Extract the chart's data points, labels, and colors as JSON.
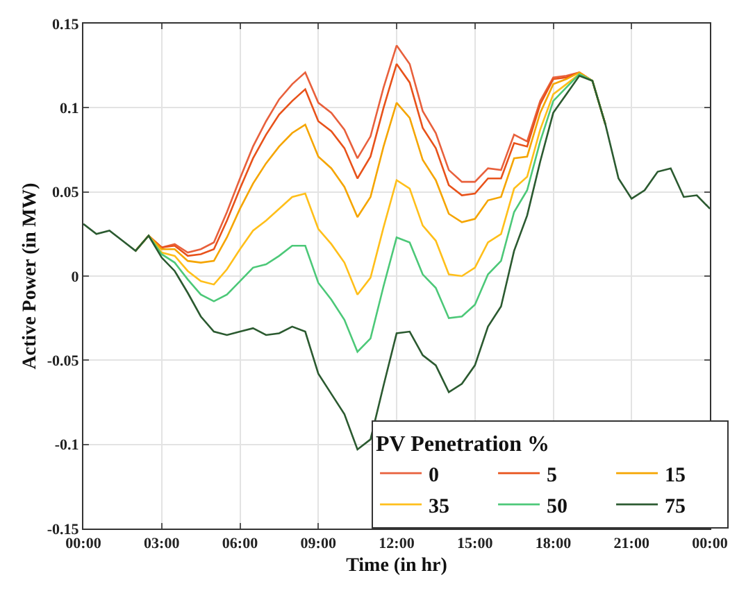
{
  "chart_data": {
    "type": "line",
    "xlabel": "Time (in hr)",
    "ylabel": "Active Power (in MW)",
    "legend_title": "PV Penetration %",
    "legend": "bottom right",
    "grid": true,
    "line_style": "solid",
    "marker": "none",
    "x": [
      0,
      0.5,
      1,
      1.5,
      2,
      2.5,
      3,
      3.5,
      4,
      4.5,
      5,
      5.5,
      6,
      6.5,
      7,
      7.5,
      8,
      8.5,
      9,
      9.5,
      10,
      10.5,
      11,
      11.5,
      12,
      12.5,
      13,
      13.5,
      14,
      14.5,
      15,
      15.5,
      16,
      16.5,
      17,
      17.5,
      18,
      18.5,
      19,
      19.5,
      20,
      20.5,
      21,
      21.5,
      22,
      22.5,
      23,
      23.5,
      24
    ],
    "xlim": [
      0,
      24
    ],
    "xticks": [
      {
        "value": 0,
        "label": "00:00"
      },
      {
        "value": 3,
        "label": "03:00"
      },
      {
        "value": 6,
        "label": "06:00"
      },
      {
        "value": 9,
        "label": "09:00"
      },
      {
        "value": 12,
        "label": "12:00"
      },
      {
        "value": 15,
        "label": "15:00"
      },
      {
        "value": 18,
        "label": "18:00"
      },
      {
        "value": 21,
        "label": "21:00"
      },
      {
        "value": 24,
        "label": "00:00"
      }
    ],
    "ylim": [
      -0.15,
      0.15
    ],
    "yticks": [
      -0.15,
      -0.1,
      -0.05,
      0,
      0.05,
      0.1,
      0.15
    ],
    "series": [
      {
        "name": "0",
        "color": "#e8603c",
        "values": [
          null,
          null,
          null,
          null,
          0.015,
          0.024,
          0.017,
          0.019,
          0.014,
          0.016,
          0.02,
          0.038,
          0.058,
          0.077,
          0.092,
          0.105,
          0.114,
          0.121,
          0.103,
          0.097,
          0.087,
          0.07,
          0.083,
          0.112,
          0.137,
          0.126,
          0.098,
          0.085,
          0.063,
          0.056,
          0.056,
          0.064,
          0.063,
          0.084,
          0.08,
          0.104,
          0.118,
          0.119,
          0.121,
          0.116,
          0.09,
          null,
          null,
          null,
          null,
          null,
          null,
          null,
          null
        ]
      },
      {
        "name": "5",
        "color": "#e8521a",
        "values": [
          null,
          null,
          null,
          null,
          0.015,
          0.024,
          0.017,
          0.018,
          0.012,
          0.013,
          0.016,
          0.033,
          0.052,
          0.07,
          0.084,
          0.096,
          0.104,
          0.111,
          0.092,
          0.086,
          0.076,
          0.058,
          0.071,
          0.1,
          0.126,
          0.115,
          0.088,
          0.076,
          0.054,
          0.048,
          0.049,
          0.058,
          0.058,
          0.079,
          0.077,
          0.102,
          0.117,
          0.118,
          0.121,
          0.116,
          0.09,
          null,
          null,
          null,
          null,
          null,
          null,
          null,
          null
        ]
      },
      {
        "name": "15",
        "color": "#f5a500",
        "values": [
          null,
          null,
          null,
          null,
          0.015,
          0.024,
          0.016,
          0.016,
          0.009,
          0.008,
          0.009,
          0.023,
          0.04,
          0.055,
          0.067,
          0.077,
          0.085,
          0.09,
          0.071,
          0.064,
          0.053,
          0.035,
          0.047,
          0.077,
          0.103,
          0.094,
          0.069,
          0.057,
          0.037,
          0.032,
          0.034,
          0.045,
          0.047,
          0.07,
          0.071,
          0.097,
          0.114,
          0.117,
          0.121,
          0.116,
          0.09,
          null,
          null,
          null,
          null,
          null,
          null,
          null,
          null
        ]
      },
      {
        "name": "35",
        "color": "#ffbf1a",
        "values": [
          null,
          null,
          null,
          null,
          0.015,
          0.024,
          0.014,
          0.012,
          0.003,
          -0.003,
          -0.005,
          0.004,
          0.016,
          0.027,
          0.033,
          0.04,
          0.047,
          0.049,
          0.028,
          0.019,
          0.008,
          -0.011,
          -0.001,
          0.029,
          0.057,
          0.052,
          0.03,
          0.021,
          0.001,
          0.0,
          0.005,
          0.02,
          0.025,
          0.052,
          0.059,
          0.087,
          0.108,
          0.114,
          0.12,
          0.116,
          0.09,
          null,
          null,
          null,
          null,
          null,
          null,
          null,
          null
        ]
      },
      {
        "name": "50",
        "color": "#4cc878",
        "values": [
          null,
          null,
          null,
          null,
          0.015,
          0.024,
          0.013,
          0.008,
          -0.002,
          -0.011,
          -0.015,
          -0.011,
          -0.003,
          0.005,
          0.007,
          0.012,
          0.018,
          0.018,
          -0.004,
          -0.014,
          -0.026,
          -0.045,
          -0.037,
          -0.006,
          0.023,
          0.02,
          0.001,
          -0.007,
          -0.025,
          -0.024,
          -0.017,
          0.001,
          0.009,
          0.038,
          0.051,
          0.08,
          0.104,
          0.112,
          0.12,
          0.116,
          0.09,
          null,
          null,
          null,
          null,
          null,
          null,
          null,
          null
        ]
      },
      {
        "name": "75",
        "color": "#2b5a30",
        "values": [
          0.031,
          0.025,
          0.027,
          0.021,
          0.015,
          0.024,
          0.011,
          0.003,
          -0.01,
          -0.024,
          -0.033,
          -0.035,
          -0.033,
          -0.031,
          -0.035,
          -0.034,
          -0.03,
          -0.033,
          -0.058,
          -0.07,
          -0.082,
          -0.103,
          -0.097,
          -0.065,
          -0.034,
          -0.033,
          -0.047,
          -0.053,
          -0.069,
          -0.064,
          -0.053,
          -0.03,
          -0.018,
          0.015,
          0.036,
          0.068,
          0.097,
          0.108,
          0.119,
          0.116,
          0.09,
          0.058,
          0.046,
          0.051,
          0.062,
          0.064,
          0.047,
          0.048,
          0.04
        ]
      }
    ]
  }
}
